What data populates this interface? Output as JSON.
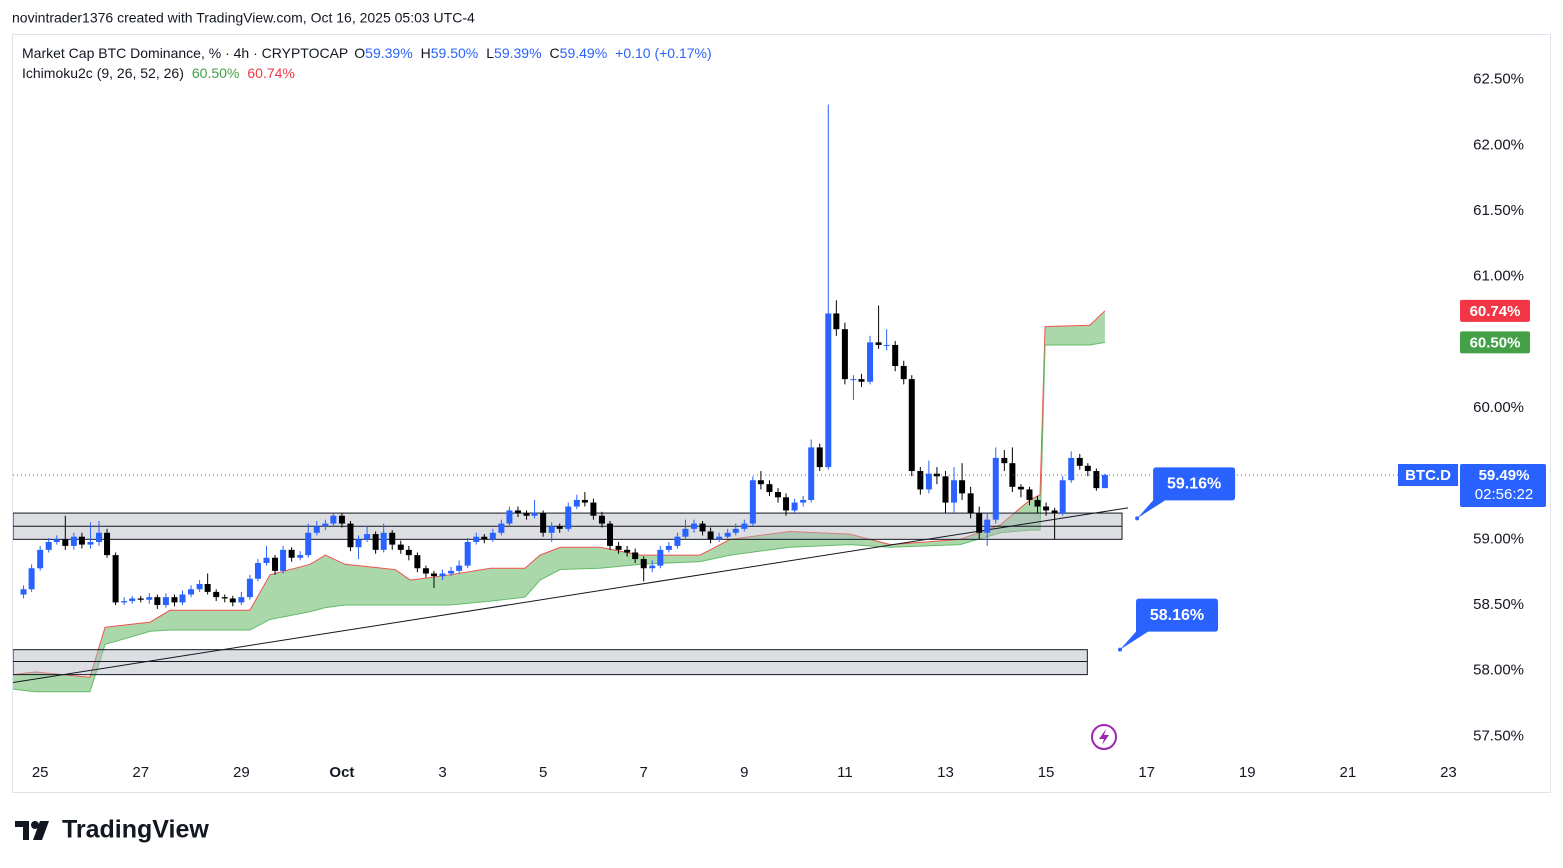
{
  "header": {
    "attribution": "novintrader1376 created with TradingView.com, Oct 16, 2025 05:03 UTC-4"
  },
  "chart_data": {
    "type": "candlestick",
    "symbol": "Market Cap BTC Dominance, % · 4h · CRYPTOCAP",
    "ohlc_legend": [
      {
        "key": "O",
        "text": "59.39%"
      },
      {
        "key": "H",
        "text": "59.50%"
      },
      {
        "key": "L",
        "text": "59.39%"
      },
      {
        "key": "C",
        "text": "59.49%"
      }
    ],
    "change": "+0.10 (+0.17%)",
    "indicator": {
      "name": "Ichimoku2c (9, 26, 52, 26)",
      "values": [
        60.5,
        60.74
      ],
      "value_labels": [
        "60.50%",
        "60.74%"
      ],
      "colors": [
        "#43a047",
        "#f23645"
      ]
    },
    "up_color": "#2962ff",
    "down_color": "#000000",
    "x": [
      -0.33,
      -0.17,
      0,
      0.17,
      0.33,
      0.5,
      0.67,
      0.83,
      1,
      1.17,
      1.33,
      1.5,
      1.67,
      1.83,
      2,
      2.17,
      2.33,
      2.5,
      2.67,
      2.83,
      3,
      3.17,
      3.33,
      3.5,
      3.67,
      3.83,
      4,
      4.17,
      4.33,
      4.5,
      4.67,
      4.83,
      5,
      5.17,
      5.33,
      5.5,
      5.67,
      5.83,
      6,
      6.17,
      6.33,
      6.5,
      6.67,
      6.83,
      7,
      7.17,
      7.33,
      7.5,
      7.67,
      7.83,
      8,
      8.17,
      8.33,
      8.5,
      8.67,
      8.83,
      9,
      9.17,
      9.33,
      9.5,
      9.67,
      9.83,
      10,
      10.17,
      10.33,
      10.5,
      10.67,
      10.83,
      11,
      11.17,
      11.33,
      11.5,
      11.67,
      11.83,
      12,
      12.17,
      12.33,
      12.5,
      12.67,
      12.83,
      13,
      13.17,
      13.33,
      13.5,
      13.67,
      13.83,
      14,
      14.17,
      14.33,
      14.5,
      14.67,
      14.83,
      15,
      15.17,
      15.33,
      15.5,
      15.67,
      15.83,
      16,
      16.17,
      16.33,
      16.5,
      16.67,
      16.83,
      17,
      17.17,
      17.33,
      17.5,
      17.67,
      17.83,
      18,
      18.17,
      18.33,
      18.5,
      18.67,
      18.83,
      19,
      19.17,
      19.33,
      19.5,
      19.67,
      19.83,
      20,
      20.17,
      20.33,
      20.5,
      20.67,
      20.83,
      21,
      21.17
    ],
    "open": [
      58.58,
      58.62,
      58.78,
      58.92,
      58.98,
      59.0,
      58.95,
      59.02,
      58.96,
      58.98,
      59.05,
      58.88,
      58.52,
      58.53,
      58.55,
      58.54,
      58.56,
      58.5,
      58.56,
      58.52,
      58.58,
      58.62,
      58.66,
      58.6,
      58.56,
      58.55,
      58.52,
      58.56,
      58.7,
      58.82,
      58.86,
      58.76,
      58.92,
      58.86,
      58.88,
      59.05,
      59.1,
      59.12,
      59.18,
      59.12,
      58.94,
      59.0,
      59.04,
      58.92,
      59.05,
      58.96,
      58.92,
      58.88,
      58.78,
      58.74,
      58.72,
      58.74,
      58.76,
      58.8,
      58.98,
      59.02,
      59.0,
      59.05,
      59.12,
      59.22,
      59.2,
      59.18,
      59.2,
      59.05,
      59.1,
      59.08,
      59.25,
      59.3,
      59.28,
      59.18,
      59.12,
      58.95,
      58.92,
      58.9,
      58.85,
      58.78,
      58.8,
      58.92,
      58.95,
      59.02,
      59.08,
      59.12,
      59.06,
      59.0,
      59.02,
      59.05,
      59.08,
      59.12,
      59.45,
      59.42,
      59.36,
      59.32,
      59.22,
      59.28,
      59.3,
      59.7,
      59.55,
      60.72,
      60.6,
      60.22,
      60.22,
      60.2,
      60.5,
      60.48,
      60.48,
      60.32,
      60.22,
      59.52,
      59.38,
      59.5,
      59.48,
      59.28,
      59.45,
      59.35,
      59.2,
      59.05,
      59.15,
      59.62,
      59.58,
      59.4,
      59.38,
      59.3,
      59.25,
      59.22,
      59.2,
      59.45,
      59.62,
      59.56,
      59.52,
      59.39
    ],
    "high": [
      58.65,
      58.81,
      58.95,
      59.01,
      59.03,
      59.18,
      59.05,
      59.05,
      59.13,
      59.14,
      59.08,
      58.9,
      58.56,
      58.57,
      58.57,
      58.59,
      58.58,
      58.59,
      58.58,
      58.61,
      58.65,
      58.69,
      58.74,
      58.62,
      58.58,
      58.57,
      58.6,
      58.73,
      58.85,
      58.95,
      58.88,
      58.95,
      58.94,
      58.91,
      59.12,
      59.14,
      59.15,
      59.2,
      59.2,
      59.14,
      59.03,
      59.1,
      59.06,
      59.12,
      59.07,
      58.99,
      58.95,
      58.9,
      58.8,
      58.76,
      58.77,
      58.79,
      58.84,
      59.01,
      59.05,
      59.04,
      59.08,
      59.15,
      59.25,
      59.25,
      59.22,
      59.3,
      59.22,
      59.13,
      59.12,
      59.28,
      59.34,
      59.36,
      59.31,
      59.21,
      59.14,
      58.98,
      58.95,
      58.93,
      58.87,
      58.84,
      58.95,
      58.98,
      59.05,
      59.15,
      59.15,
      59.14,
      59.09,
      59.05,
      59.08,
      59.12,
      59.15,
      59.48,
      59.52,
      59.45,
      59.39,
      59.35,
      59.31,
      59.33,
      59.76,
      59.73,
      62.31,
      60.82,
      60.65,
      60.25,
      60.26,
      60.55,
      60.78,
      60.6,
      60.51,
      60.36,
      60.25,
      59.55,
      59.6,
      59.55,
      59.52,
      59.55,
      59.58,
      59.4,
      59.25,
      59.2,
      59.7,
      59.68,
      59.7,
      59.42,
      59.4,
      59.33,
      59.28,
      59.24,
      59.48,
      59.67,
      59.65,
      59.58,
      59.54,
      59.5
    ],
    "low": [
      58.55,
      58.6,
      58.76,
      58.9,
      58.96,
      58.92,
      58.92,
      58.93,
      58.93,
      58.95,
      58.86,
      58.5,
      58.5,
      58.51,
      58.52,
      58.51,
      58.47,
      58.48,
      58.49,
      58.5,
      58.56,
      58.6,
      58.58,
      58.53,
      58.52,
      58.49,
      58.5,
      58.54,
      58.68,
      58.8,
      58.73,
      58.74,
      58.83,
      58.84,
      58.86,
      59.03,
      59.07,
      59.1,
      59.09,
      58.91,
      58.85,
      58.98,
      58.89,
      58.9,
      58.92,
      58.89,
      58.84,
      58.75,
      58.71,
      58.63,
      58.69,
      58.72,
      58.74,
      58.78,
      58.96,
      58.97,
      58.98,
      59.03,
      59.1,
      59.17,
      59.15,
      59.16,
      59.02,
      58.98,
      59.05,
      59.06,
      59.23,
      59.25,
      59.15,
      59.09,
      58.92,
      58.89,
      58.87,
      58.82,
      58.68,
      58.75,
      58.78,
      58.9,
      58.93,
      59.0,
      59.05,
      59.03,
      58.97,
      58.98,
      59.0,
      59.03,
      59.06,
      59.1,
      59.38,
      59.33,
      59.28,
      59.18,
      59.2,
      59.25,
      59.28,
      59.52,
      59.53,
      60.55,
      60.18,
      60.06,
      60.16,
      60.18,
      60.45,
      60.44,
      60.28,
      60.18,
      59.48,
      59.34,
      59.35,
      59.42,
      59.2,
      59.2,
      59.3,
      59.16,
      59.0,
      58.95,
      59.12,
      59.52,
      59.36,
      59.32,
      59.26,
      59.2,
      59.18,
      59.0,
      59.18,
      59.43,
      59.53,
      59.48,
      59.37,
      59.39
    ],
    "close": [
      58.62,
      58.78,
      58.92,
      58.98,
      59.0,
      58.95,
      59.02,
      58.96,
      58.98,
      59.05,
      58.88,
      58.52,
      58.53,
      58.55,
      58.54,
      58.56,
      58.5,
      58.56,
      58.52,
      58.58,
      58.62,
      58.66,
      58.6,
      58.56,
      58.55,
      58.52,
      58.56,
      58.7,
      58.82,
      58.86,
      58.76,
      58.92,
      58.86,
      58.88,
      59.05,
      59.1,
      59.12,
      59.18,
      59.12,
      58.94,
      59.0,
      59.04,
      58.92,
      59.05,
      58.96,
      58.92,
      58.88,
      58.78,
      58.74,
      58.72,
      58.74,
      58.76,
      58.8,
      58.98,
      59.02,
      59.0,
      59.05,
      59.12,
      59.22,
      59.2,
      59.18,
      59.2,
      59.05,
      59.1,
      59.08,
      59.25,
      59.3,
      59.28,
      59.18,
      59.12,
      58.95,
      58.92,
      58.9,
      58.85,
      58.78,
      58.8,
      58.92,
      58.95,
      59.02,
      59.08,
      59.12,
      59.06,
      59.0,
      59.02,
      59.05,
      59.08,
      59.12,
      59.45,
      59.42,
      59.36,
      59.32,
      59.22,
      59.28,
      59.3,
      59.7,
      59.55,
      60.72,
      60.6,
      60.22,
      60.22,
      60.2,
      60.5,
      60.48,
      60.48,
      60.32,
      60.22,
      59.52,
      59.38,
      59.5,
      59.48,
      59.28,
      59.45,
      59.35,
      59.2,
      59.05,
      59.15,
      59.62,
      59.58,
      59.4,
      59.38,
      59.3,
      59.25,
      59.22,
      59.2,
      59.45,
      59.62,
      59.56,
      59.52,
      59.39,
      59.49
    ],
    "cloud": {
      "x": [
        -0.54,
        -0.1,
        0.99,
        1.29,
        2.19,
        2.58,
        4.17,
        4.57,
        5.37,
        5.67,
        6.06,
        7.06,
        7.36,
        8.15,
        8.95,
        9.64,
        9.94,
        10.34,
        11.13,
        11.93,
        13.12,
        13.72,
        14.91,
        16.1,
        16.9,
        18.29,
        19.09,
        19.68,
        19.88,
        19.98,
        20.87,
        21.17
      ],
      "upper": [
        57.97,
        57.99,
        57.95,
        58.33,
        58.37,
        58.46,
        58.46,
        58.73,
        58.81,
        58.88,
        58.81,
        58.77,
        58.69,
        58.73,
        58.78,
        58.78,
        58.88,
        58.94,
        58.94,
        58.88,
        58.88,
        59.0,
        59.06,
        59.04,
        58.96,
        59.0,
        59.11,
        59.3,
        59.34,
        60.62,
        60.63,
        60.74
      ],
      "lower": [
        57.86,
        57.84,
        57.84,
        58.2,
        58.3,
        58.31,
        58.31,
        58.39,
        58.45,
        58.48,
        58.5,
        58.5,
        58.5,
        58.5,
        58.53,
        58.56,
        58.69,
        58.77,
        58.78,
        58.81,
        58.83,
        58.88,
        58.94,
        58.96,
        58.94,
        58.96,
        59.05,
        59.07,
        59.07,
        60.48,
        60.48,
        60.5
      ],
      "fill": "#a5d6a7",
      "upper_color": "#ef5350",
      "lower_color": "#66bb6a"
    },
    "zones": [
      {
        "x": [
          -0.54,
          21.51
        ],
        "top": 59.2,
        "bottom": 59.0,
        "mid": 59.1
      },
      {
        "x": [
          -0.54,
          20.82
        ],
        "top": 58.16,
        "bottom": 57.97,
        "mid": 58.07
      }
    ],
    "trendline": {
      "x": [
        -0.54,
        21.63
      ],
      "y": [
        57.91,
        59.24
      ]
    },
    "callouts": [
      {
        "x": 21.81,
        "value": 59.16,
        "label": "59.16%"
      },
      {
        "x": 21.47,
        "value": 58.16,
        "label": "58.16%"
      }
    ],
    "last_price": {
      "symbol": "BTC.D",
      "value": 59.49,
      "label": "59.49%",
      "countdown": "02:56:22"
    },
    "xlim": [
      -0.54,
      28.19
    ],
    "xticks": [
      {
        "value": 0,
        "label": "25"
      },
      {
        "value": 2,
        "label": "27"
      },
      {
        "value": 4,
        "label": "29"
      },
      {
        "value": 6,
        "label": "Oct"
      },
      {
        "value": 8,
        "label": "3"
      },
      {
        "value": 10,
        "label": "5"
      },
      {
        "value": 12,
        "label": "7"
      },
      {
        "value": 14,
        "label": "9"
      },
      {
        "value": 16,
        "label": "11"
      },
      {
        "value": 18,
        "label": "13"
      },
      {
        "value": 20,
        "label": "15"
      },
      {
        "value": 22,
        "label": "17"
      },
      {
        "value": 24,
        "label": "19"
      },
      {
        "value": 26,
        "label": "21"
      },
      {
        "value": 28,
        "label": "23"
      }
    ],
    "ylim": [
      57.32,
      62.84
    ],
    "yticks": [
      {
        "value": 57.5,
        "label": "57.50%"
      },
      {
        "value": 58,
        "label": "58.00%"
      },
      {
        "value": 58.5,
        "label": "58.50%"
      },
      {
        "value": 59,
        "label": "59.00%"
      },
      {
        "value": 59.5,
        "label": "59.50%"
      },
      {
        "value": 60,
        "label": "60.00%"
      },
      {
        "value": 60.5,
        "label": "60.50%"
      },
      {
        "value": 61,
        "label": "61.00%"
      },
      {
        "value": 61.5,
        "label": "61.50%"
      },
      {
        "value": 62,
        "label": "62.00%"
      },
      {
        "value": 62.5,
        "label": "62.50%"
      }
    ]
  },
  "footer": {
    "brand": "TradingView"
  }
}
